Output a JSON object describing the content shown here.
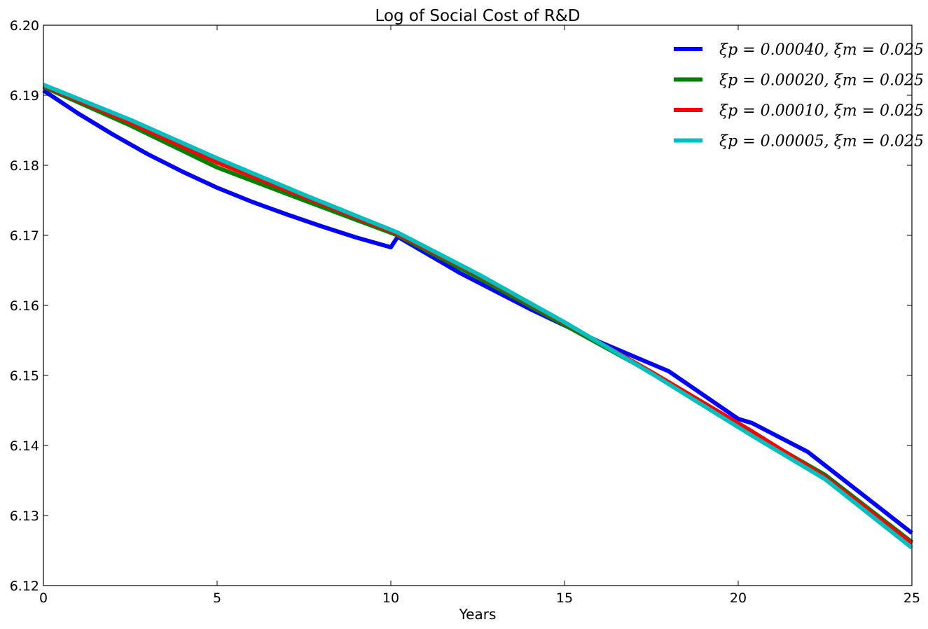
{
  "chart_data": {
    "type": "line",
    "title": "Log of Social Cost of R&D",
    "xlabel": "Years",
    "ylabel": "",
    "xlim": [
      0,
      25
    ],
    "ylim": [
      6.12,
      6.2
    ],
    "xticks": [
      0,
      5,
      10,
      15,
      20,
      25
    ],
    "yticks": [
      6.12,
      6.13,
      6.14,
      6.15,
      6.16,
      6.17,
      6.18,
      6.19,
      6.2
    ],
    "ytick_labels": [
      "6.12",
      "6.13",
      "6.14",
      "6.15",
      "6.16",
      "6.17",
      "6.18",
      "6.19",
      "6.20"
    ],
    "grid": false,
    "legend_position": "top-right",
    "series": [
      {
        "name": "ξp = 0.00040, ξm = 0.025",
        "color": "#0000ff",
        "x": [
          0,
          1,
          2,
          3,
          4,
          5,
          6,
          7,
          8,
          9,
          10,
          10.2,
          12,
          14,
          16,
          18,
          20,
          20.4,
          22,
          25
        ],
        "y": [
          6.1907,
          6.1874,
          6.1844,
          6.1816,
          6.1791,
          6.1768,
          6.1748,
          6.173,
          6.1713,
          6.1697,
          6.1683,
          6.1698,
          6.1646,
          6.1595,
          6.1548,
          6.1506,
          6.1438,
          6.1432,
          6.1391,
          6.1275
        ]
      },
      {
        "name": "ξp = 0.00020, ξm = 0.025",
        "color": "#008000",
        "x": [
          0,
          2.5,
          5,
          7.5,
          10.2,
          12.5,
          15,
          17.5,
          20.4,
          22.5,
          25
        ],
        "y": [
          6.1912,
          6.1857,
          6.1797,
          6.175,
          6.17,
          6.164,
          6.1572,
          6.1504,
          6.1418,
          6.1358,
          6.1262
        ]
      },
      {
        "name": "ξp = 0.00010, ξm = 0.025",
        "color": "#ff0000",
        "x": [
          0,
          2.5,
          5,
          7.5,
          10.2,
          12.5,
          15,
          17.5,
          20.4,
          22.5,
          25
        ],
        "y": [
          6.1914,
          6.1861,
          6.1804,
          6.1755,
          6.1702,
          6.1644,
          6.1575,
          6.1505,
          6.142,
          6.1355,
          6.126
        ]
      },
      {
        "name": "ξp = 0.00005, ξm = 0.025",
        "color": "#00bfbf",
        "x": [
          0,
          2.5,
          5,
          7.5,
          10.2,
          12.5,
          15,
          17.5,
          20.4,
          22.5,
          25
        ],
        "y": [
          6.1915,
          6.1865,
          6.181,
          6.1758,
          6.1704,
          6.1645,
          6.1576,
          6.1503,
          6.1414,
          6.1352,
          6.1254
        ]
      }
    ]
  }
}
